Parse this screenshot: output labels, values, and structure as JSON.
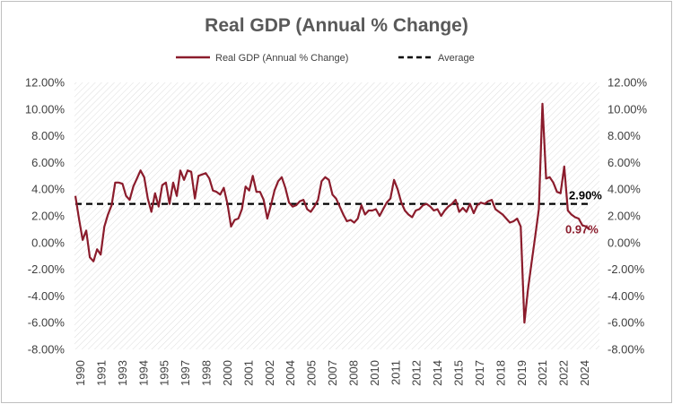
{
  "chart_data": {
    "type": "line",
    "title": "Real GDP (Annual % Change)",
    "xlabel": "",
    "ylabel": "",
    "ylim": [
      -8,
      12
    ],
    "y_ticks": [
      "-8.00%",
      "-6.00%",
      "-4.00%",
      "-2.00%",
      "0.00%",
      "2.00%",
      "4.00%",
      "6.00%",
      "8.00%",
      "10.00%",
      "12.00%"
    ],
    "x_tick_labels": [
      "1990",
      "1991",
      "1993",
      "1994",
      "1995",
      "1997",
      "1998",
      "2000",
      "2001",
      "2002",
      "2004",
      "2005",
      "2007",
      "2008",
      "2010",
      "2011",
      "2012",
      "2014",
      "2015",
      "2017",
      "2018",
      "2019",
      "2021",
      "2022",
      "2024"
    ],
    "grid": false,
    "legend_position": "top",
    "series": [
      {
        "name": "Real GDP (Annual % Change)",
        "color": "#8b1c2c",
        "values": [
          3.5,
          1.8,
          0.2,
          0.9,
          -1.1,
          -1.4,
          -0.5,
          -0.9,
          1.2,
          2.1,
          2.8,
          4.5,
          4.5,
          4.4,
          3.5,
          3.2,
          4.2,
          4.8,
          5.4,
          4.9,
          3.3,
          2.3,
          3.7,
          2.7,
          4.3,
          4.5,
          2.9,
          4.5,
          3.5,
          5.4,
          4.7,
          5.4,
          5.3,
          3.3,
          5.0,
          5.1,
          5.2,
          4.8,
          3.9,
          3.8,
          3.6,
          4.1,
          2.9,
          1.2,
          1.7,
          1.8,
          2.5,
          4.2,
          3.9,
          5.0,
          3.8,
          3.8,
          3.2,
          1.8,
          2.8,
          3.9,
          4.6,
          4.9,
          4.1,
          3.0,
          2.7,
          2.8,
          3.1,
          3.2,
          2.5,
          2.3,
          2.7,
          3.2,
          4.6,
          4.9,
          4.7,
          3.6,
          3.3,
          2.7,
          2.1,
          1.6,
          1.7,
          1.5,
          1.8,
          2.8,
          2.1,
          2.4,
          2.4,
          2.5,
          2.0,
          2.5,
          3.0,
          3.3,
          4.7,
          4.0,
          3.0,
          2.4,
          2.1,
          1.9,
          2.4,
          2.5,
          2.8,
          2.9,
          2.7,
          2.4,
          2.5,
          2.0,
          2.4,
          2.7,
          2.9,
          3.2,
          2.3,
          2.6,
          2.3,
          2.9,
          2.2,
          2.8,
          3.0,
          2.9,
          3.1,
          3.2,
          2.5,
          2.3,
          2.1,
          1.8,
          1.5,
          1.6,
          1.8,
          1.2,
          -6.0,
          -3.5,
          -1.5,
          0.5,
          2.5,
          10.4,
          4.8,
          4.9,
          4.5,
          3.8,
          3.7,
          5.7,
          2.4,
          2.1,
          1.9,
          1.8,
          1.3,
          1.2,
          0.97
        ]
      },
      {
        "name": "Average",
        "color": "#000000",
        "style": "dashed",
        "constant": 2.9
      }
    ],
    "annotations": [
      {
        "text": "2.90%",
        "value": 2.9,
        "color": "#000000"
      },
      {
        "text": "0.97%",
        "value": 0.97,
        "color": "#8b1c2c"
      }
    ]
  }
}
